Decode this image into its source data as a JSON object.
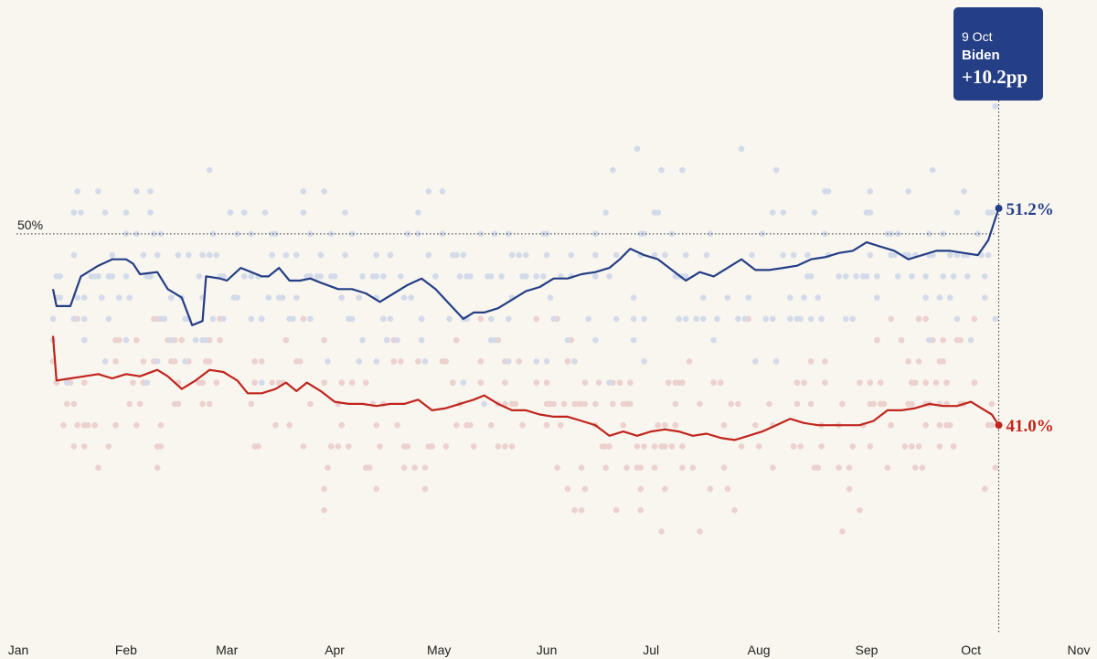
{
  "chart_data": {
    "type": "line",
    "x_axis": {
      "type": "date",
      "range": [
        "Jan",
        "Nov"
      ],
      "tick_labels": [
        "Jan",
        "Feb",
        "Mar",
        "Apr",
        "May",
        "Jun",
        "Jul",
        "Aug",
        "Sep",
        "Oct",
        "Nov"
      ]
    },
    "y_axis": {
      "unit": "%",
      "range": [
        30,
        61
      ],
      "tick_labels": []
    },
    "reference_line": {
      "value": 50,
      "label": "50%"
    },
    "series": [
      {
        "key": "biden",
        "color": "#253f86",
        "dot_color": "#d3dbea",
        "end_label": "51.2%",
        "points": [
          [
            "2020-01-11",
            47.4
          ],
          [
            "2020-01-12",
            46.6
          ],
          [
            "2020-01-16",
            46.6
          ],
          [
            "2020-01-19",
            48.0
          ],
          [
            "2020-01-24",
            48.5
          ],
          [
            "2020-01-28",
            48.8
          ],
          [
            "2020-02-01",
            48.8
          ],
          [
            "2020-02-03",
            48.6
          ],
          [
            "2020-02-05",
            48.1
          ],
          [
            "2020-02-10",
            48.2
          ],
          [
            "2020-02-13",
            47.4
          ],
          [
            "2020-02-17",
            47.0
          ],
          [
            "2020-02-20",
            45.7
          ],
          [
            "2020-02-23",
            45.9
          ],
          [
            "2020-02-24",
            48.0
          ],
          [
            "2020-02-28",
            47.9
          ],
          [
            "2020-03-01",
            47.8
          ],
          [
            "2020-03-05",
            48.4
          ],
          [
            "2020-03-08",
            48.2
          ],
          [
            "2020-03-11",
            48.0
          ],
          [
            "2020-03-13",
            48.0
          ],
          [
            "2020-03-16",
            48.4
          ],
          [
            "2020-03-19",
            47.8
          ],
          [
            "2020-03-22",
            47.8
          ],
          [
            "2020-03-25",
            47.9
          ],
          [
            "2020-03-28",
            47.7
          ],
          [
            "2020-04-02",
            47.4
          ],
          [
            "2020-04-06",
            47.4
          ],
          [
            "2020-04-10",
            47.2
          ],
          [
            "2020-04-14",
            46.8
          ],
          [
            "2020-04-18",
            47.2
          ],
          [
            "2020-04-22",
            47.6
          ],
          [
            "2020-04-26",
            47.9
          ],
          [
            "2020-04-30",
            47.4
          ],
          [
            "2020-05-04",
            46.7
          ],
          [
            "2020-05-08",
            46.0
          ],
          [
            "2020-05-11",
            46.3
          ],
          [
            "2020-05-14",
            46.3
          ],
          [
            "2020-05-18",
            46.5
          ],
          [
            "2020-05-22",
            46.9
          ],
          [
            "2020-05-26",
            47.3
          ],
          [
            "2020-05-30",
            47.5
          ],
          [
            "2020-06-03",
            47.9
          ],
          [
            "2020-06-07",
            47.9
          ],
          [
            "2020-06-11",
            48.1
          ],
          [
            "2020-06-15",
            48.2
          ],
          [
            "2020-06-19",
            48.4
          ],
          [
            "2020-06-22",
            48.8
          ],
          [
            "2020-06-25",
            49.3
          ],
          [
            "2020-06-29",
            49.0
          ],
          [
            "2020-07-03",
            48.8
          ],
          [
            "2020-07-07",
            48.3
          ],
          [
            "2020-07-11",
            47.8
          ],
          [
            "2020-07-15",
            48.2
          ],
          [
            "2020-07-19",
            48.0
          ],
          [
            "2020-07-23",
            48.4
          ],
          [
            "2020-07-27",
            48.8
          ],
          [
            "2020-07-31",
            48.3
          ],
          [
            "2020-08-04",
            48.3
          ],
          [
            "2020-08-08",
            48.4
          ],
          [
            "2020-08-12",
            48.5
          ],
          [
            "2020-08-16",
            48.8
          ],
          [
            "2020-08-20",
            48.9
          ],
          [
            "2020-08-24",
            49.1
          ],
          [
            "2020-08-28",
            49.2
          ],
          [
            "2020-09-01",
            49.6
          ],
          [
            "2020-09-05",
            49.4
          ],
          [
            "2020-09-09",
            49.2
          ],
          [
            "2020-09-13",
            48.8
          ],
          [
            "2020-09-17",
            49.0
          ],
          [
            "2020-09-21",
            49.2
          ],
          [
            "2020-09-25",
            49.2
          ],
          [
            "2020-09-29",
            49.1
          ],
          [
            "2020-10-03",
            49.0
          ],
          [
            "2020-10-06",
            49.7
          ],
          [
            "2020-10-09",
            51.2
          ]
        ]
      },
      {
        "key": "trump",
        "color": "#c0251d",
        "dot_color": "#ecd1ce",
        "end_label": "41.0%",
        "points": [
          [
            "2020-01-11",
            45.2
          ],
          [
            "2020-01-12",
            43.1
          ],
          [
            "2020-01-16",
            43.2
          ],
          [
            "2020-01-20",
            43.3
          ],
          [
            "2020-01-24",
            43.4
          ],
          [
            "2020-01-28",
            43.2
          ],
          [
            "2020-02-01",
            43.4
          ],
          [
            "2020-02-05",
            43.3
          ],
          [
            "2020-02-10",
            43.6
          ],
          [
            "2020-02-13",
            43.3
          ],
          [
            "2020-02-17",
            42.7
          ],
          [
            "2020-02-21",
            43.1
          ],
          [
            "2020-02-25",
            43.6
          ],
          [
            "2020-02-29",
            43.5
          ],
          [
            "2020-03-04",
            43.1
          ],
          [
            "2020-03-07",
            42.5
          ],
          [
            "2020-03-11",
            42.5
          ],
          [
            "2020-03-15",
            42.7
          ],
          [
            "2020-03-18",
            43.0
          ],
          [
            "2020-03-21",
            42.6
          ],
          [
            "2020-03-24",
            43.0
          ],
          [
            "2020-03-28",
            42.6
          ],
          [
            "2020-04-01",
            42.1
          ],
          [
            "2020-04-05",
            42.0
          ],
          [
            "2020-04-09",
            42.0
          ],
          [
            "2020-04-13",
            41.9
          ],
          [
            "2020-04-17",
            42.0
          ],
          [
            "2020-04-21",
            42.0
          ],
          [
            "2020-04-25",
            42.2
          ],
          [
            "2020-04-29",
            41.7
          ],
          [
            "2020-05-03",
            41.8
          ],
          [
            "2020-05-07",
            42.0
          ],
          [
            "2020-05-11",
            42.2
          ],
          [
            "2020-05-14",
            42.4
          ],
          [
            "2020-05-18",
            42.0
          ],
          [
            "2020-05-22",
            41.7
          ],
          [
            "2020-05-26",
            41.7
          ],
          [
            "2020-05-30",
            41.5
          ],
          [
            "2020-06-03",
            41.4
          ],
          [
            "2020-06-07",
            41.4
          ],
          [
            "2020-06-11",
            41.2
          ],
          [
            "2020-06-15",
            41.0
          ],
          [
            "2020-06-19",
            40.5
          ],
          [
            "2020-06-23",
            40.7
          ],
          [
            "2020-06-27",
            40.5
          ],
          [
            "2020-07-01",
            40.7
          ],
          [
            "2020-07-05",
            40.8
          ],
          [
            "2020-07-09",
            40.7
          ],
          [
            "2020-07-13",
            40.5
          ],
          [
            "2020-07-17",
            40.6
          ],
          [
            "2020-07-21",
            40.4
          ],
          [
            "2020-07-25",
            40.3
          ],
          [
            "2020-07-29",
            40.5
          ],
          [
            "2020-08-02",
            40.7
          ],
          [
            "2020-08-06",
            41.0
          ],
          [
            "2020-08-10",
            41.3
          ],
          [
            "2020-08-14",
            41.1
          ],
          [
            "2020-08-18",
            41.0
          ],
          [
            "2020-08-22",
            41.0
          ],
          [
            "2020-08-26",
            41.0
          ],
          [
            "2020-08-30",
            41.0
          ],
          [
            "2020-09-03",
            41.2
          ],
          [
            "2020-09-07",
            41.7
          ],
          [
            "2020-09-11",
            41.7
          ],
          [
            "2020-09-15",
            41.8
          ],
          [
            "2020-09-19",
            42.0
          ],
          [
            "2020-09-23",
            41.9
          ],
          [
            "2020-09-27",
            41.9
          ],
          [
            "2020-10-01",
            42.1
          ],
          [
            "2020-10-04",
            41.8
          ],
          [
            "2020-10-07",
            41.5
          ],
          [
            "2020-10-09",
            41.0
          ]
        ]
      }
    ]
  },
  "tooltip": {
    "date": "9 Oct",
    "name": "Biden",
    "value": "+10.2pp",
    "background": "#253f86"
  }
}
